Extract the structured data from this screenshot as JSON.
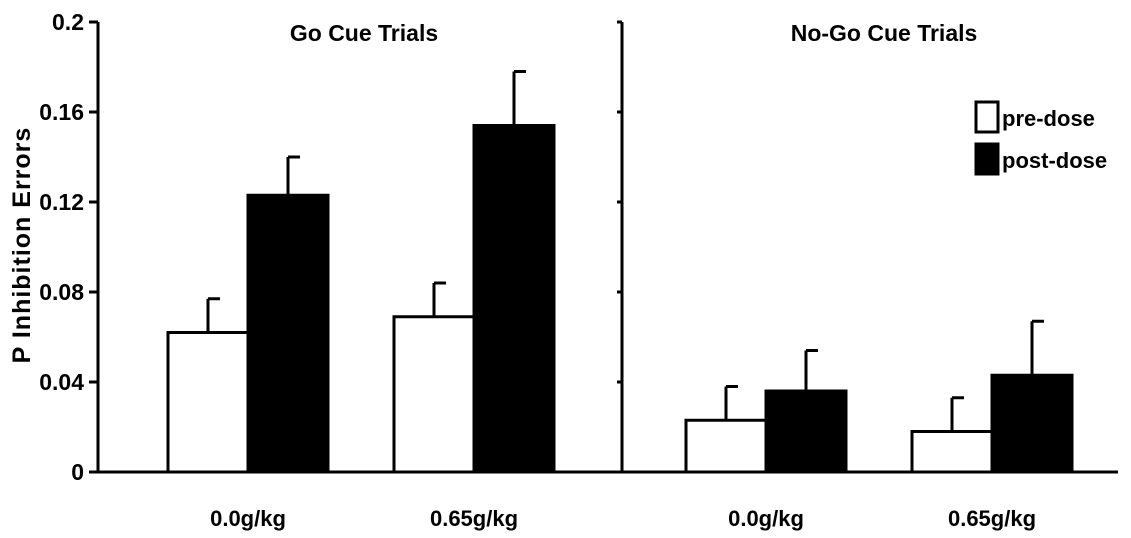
{
  "chart_data": {
    "type": "bar",
    "ylabel": "P Inhibition Errors",
    "ylim": [
      0,
      0.2
    ],
    "yticks": [
      "0",
      "0.04",
      "0.08",
      "0.12",
      "0.16",
      "0.2"
    ],
    "legend": {
      "placement": "top-right",
      "entries": [
        "pre-dose",
        "post-dose"
      ]
    },
    "colors": {
      "pre-dose": "#ffffff",
      "post-dose": "#000000"
    },
    "panels": [
      {
        "title": "Go Cue Trials",
        "categories": [
          "0.0g/kg",
          "0.65g/kg"
        ],
        "series": [
          {
            "name": "pre-dose",
            "values": [
              0.062,
              0.069
            ],
            "errors": [
              0.015,
              0.015
            ]
          },
          {
            "name": "post-dose",
            "values": [
              0.123,
              0.154
            ],
            "errors": [
              0.017,
              0.024
            ]
          }
        ]
      },
      {
        "title": "No-Go Cue Trials",
        "categories": [
          "0.0g/kg",
          "0.65g/kg"
        ],
        "series": [
          {
            "name": "pre-dose",
            "values": [
              0.023,
              0.018
            ],
            "errors": [
              0.015,
              0.015
            ]
          },
          {
            "name": "post-dose",
            "values": [
              0.036,
              0.043
            ],
            "errors": [
              0.018,
              0.024
            ]
          }
        ]
      }
    ]
  }
}
